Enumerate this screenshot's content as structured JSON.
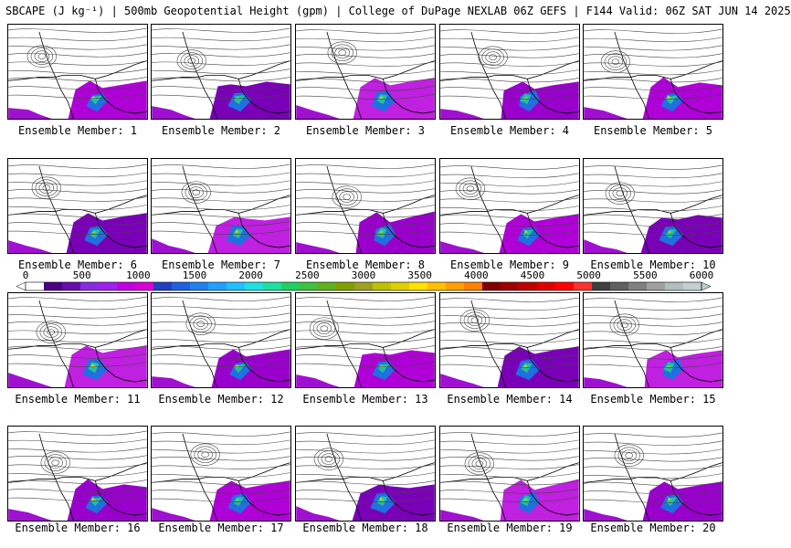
{
  "header": {
    "title": "SBCAPE (J kg⁻¹) | 500mb Geopotential Height (gpm) | College of DuPage NEXLAB 06Z GEFS | F144 Valid: 06Z SAT JUN 14 2025"
  },
  "colorbar": {
    "ticks": [
      "0",
      "500",
      "1000",
      "1500",
      "2000",
      "2500",
      "3000",
      "3500",
      "4000",
      "4500",
      "5000",
      "5500",
      "6000"
    ],
    "colors": [
      "#ffffff",
      "#4b0082",
      "#6a0dad",
      "#8a2be2",
      "#a020f0",
      "#c000e0",
      "#d800d8",
      "#2040c0",
      "#2060e0",
      "#2080f0",
      "#20a0ff",
      "#20c0ff",
      "#20e0e0",
      "#20e0a0",
      "#20d060",
      "#40c040",
      "#60b020",
      "#80a000",
      "#a0a020",
      "#c0c000",
      "#e0d000",
      "#ffe000",
      "#ffc000",
      "#ffa000",
      "#ff8000",
      "#800000",
      "#a00000",
      "#c00000",
      "#e00000",
      "#ff0000",
      "#ff3030",
      "#404040",
      "#606060",
      "#808080",
      "#a0a0a0",
      "#b0c0c0",
      "#c0d0d0"
    ]
  },
  "members": [
    {
      "label": "Ensemble Member: 1"
    },
    {
      "label": "Ensemble Member: 2"
    },
    {
      "label": "Ensemble Member: 3"
    },
    {
      "label": "Ensemble Member: 4"
    },
    {
      "label": "Ensemble Member: 5"
    },
    {
      "label": "Ensemble Member: 6"
    },
    {
      "label": "Ensemble Member: 7"
    },
    {
      "label": "Ensemble Member: 8"
    },
    {
      "label": "Ensemble Member: 9"
    },
    {
      "label": "Ensemble Member: 10"
    },
    {
      "label": "Ensemble Member: 11"
    },
    {
      "label": "Ensemble Member: 12"
    },
    {
      "label": "Ensemble Member: 13"
    },
    {
      "label": "Ensemble Member: 14"
    },
    {
      "label": "Ensemble Member: 15"
    },
    {
      "label": "Ensemble Member: 16"
    },
    {
      "label": "Ensemble Member: 17"
    },
    {
      "label": "Ensemble Member: 18"
    },
    {
      "label": "Ensemble Member: 19"
    },
    {
      "label": "Ensemble Member: 20"
    }
  ]
}
